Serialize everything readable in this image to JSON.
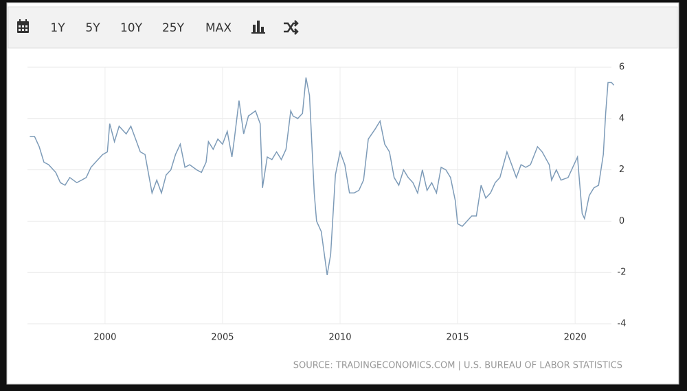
{
  "toolbar": {
    "buttons": [
      "1Y",
      "5Y",
      "10Y",
      "25Y",
      "MAX"
    ]
  },
  "chart_data": {
    "type": "line",
    "color": "#7d9bb8",
    "grid": true,
    "source": "SOURCE: TRADINGECONOMICS.COM | U.S. BUREAU OF LABOR STATISTICS",
    "xlim": [
      1996.7,
      2021.75
    ],
    "xticks": [
      2000,
      2005,
      2010,
      2015,
      2020
    ],
    "ylim": [
      -4,
      6
    ],
    "yticks": [
      6,
      4,
      2,
      0,
      -2,
      -4
    ],
    "x": [
      1996.8,
      1997.0,
      1997.2,
      1997.4,
      1997.6,
      1997.9,
      1998.1,
      1998.3,
      1998.5,
      1998.8,
      1999.0,
      1999.2,
      1999.4,
      1999.5,
      1999.7,
      1999.9,
      2000.1,
      2000.2,
      2000.4,
      2000.6,
      2000.9,
      2001.1,
      2001.3,
      2001.5,
      2001.7,
      2001.9,
      2002.0,
      2002.2,
      2002.4,
      2002.6,
      2002.8,
      2003.0,
      2003.2,
      2003.4,
      2003.6,
      2003.9,
      2004.1,
      2004.3,
      2004.4,
      2004.6,
      2004.8,
      2005.0,
      2005.2,
      2005.4,
      2005.5,
      2005.7,
      2005.9,
      2006.1,
      2006.4,
      2006.6,
      2006.7,
      2006.9,
      2007.1,
      2007.3,
      2007.5,
      2007.7,
      2007.9,
      2008.0,
      2008.2,
      2008.4,
      2008.55,
      2008.7,
      2008.9,
      2009.0,
      2009.2,
      2009.45,
      2009.6,
      2009.8,
      2010.0,
      2010.2,
      2010.4,
      2010.6,
      2010.8,
      2011.0,
      2011.2,
      2011.5,
      2011.7,
      2011.9,
      2012.1,
      2012.3,
      2012.5,
      2012.7,
      2012.9,
      2013.1,
      2013.3,
      2013.5,
      2013.7,
      2013.9,
      2014.1,
      2014.3,
      2014.5,
      2014.7,
      2014.9,
      2015.0,
      2015.2,
      2015.4,
      2015.6,
      2015.8,
      2016.0,
      2016.2,
      2016.4,
      2016.6,
      2016.8,
      2017.1,
      2017.3,
      2017.5,
      2017.7,
      2017.9,
      2018.1,
      2018.4,
      2018.6,
      2018.9,
      2019.0,
      2019.2,
      2019.4,
      2019.7,
      2019.9,
      2020.1,
      2020.3,
      2020.4,
      2020.6,
      2020.8,
      2021.0,
      2021.2,
      2021.3,
      2021.4,
      2021.55,
      2021.65
    ],
    "values": [
      3.3,
      3.3,
      2.9,
      2.3,
      2.2,
      1.9,
      1.5,
      1.4,
      1.7,
      1.5,
      1.6,
      1.7,
      2.1,
      2.2,
      2.4,
      2.6,
      2.7,
      3.8,
      3.1,
      3.7,
      3.4,
      3.7,
      3.2,
      2.7,
      2.6,
      1.6,
      1.1,
      1.6,
      1.1,
      1.8,
      2.0,
      2.6,
      3.0,
      2.1,
      2.2,
      2.0,
      1.9,
      2.3,
      3.1,
      2.8,
      3.2,
      3.0,
      3.5,
      2.5,
      3.2,
      4.7,
      3.4,
      4.1,
      4.3,
      3.8,
      1.3,
      2.5,
      2.4,
      2.7,
      2.4,
      2.8,
      4.3,
      4.1,
      4.0,
      4.2,
      5.6,
      4.9,
      1.1,
      0.0,
      -0.4,
      -2.1,
      -1.3,
      1.8,
      2.7,
      2.2,
      1.1,
      1.1,
      1.2,
      1.6,
      3.2,
      3.6,
      3.9,
      3.0,
      2.7,
      1.7,
      1.4,
      2.0,
      1.7,
      1.5,
      1.1,
      2.0,
      1.2,
      1.5,
      1.1,
      2.1,
      2.0,
      1.7,
      0.8,
      -0.1,
      -0.2,
      0.0,
      0.2,
      0.2,
      1.4,
      0.9,
      1.1,
      1.5,
      1.7,
      2.7,
      2.2,
      1.7,
      2.2,
      2.1,
      2.2,
      2.9,
      2.7,
      2.2,
      1.6,
      2.0,
      1.6,
      1.7,
      2.1,
      2.5,
      0.3,
      0.1,
      1.0,
      1.3,
      1.4,
      2.6,
      4.2,
      5.4,
      5.4,
      5.3
    ]
  }
}
